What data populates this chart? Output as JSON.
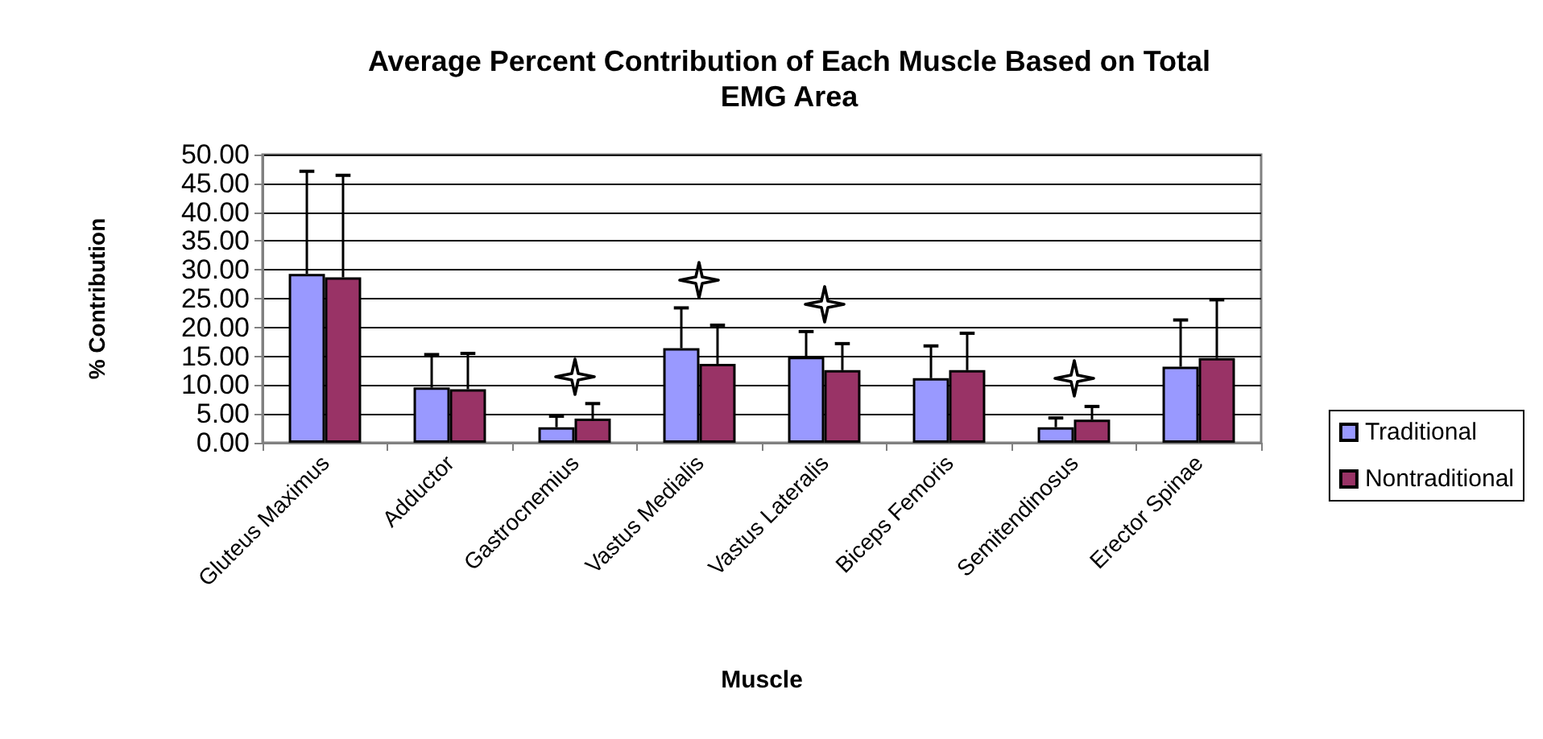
{
  "chart_data": {
    "type": "bar",
    "title": "Average Percent Contribution of Each Muscle Based on Total\nEMG Area",
    "xlabel": "Muscle",
    "ylabel": "% Contribution",
    "categories": [
      "Gluteus Maximus",
      "Adductor",
      "Gastrocnemius",
      "Vastus Medialis",
      "Vastus Lateralis",
      "Biceps Femoris",
      "Semitendinosus",
      "Erector Spinae"
    ],
    "series": [
      {
        "name": "Traditional",
        "color": "#9999ff",
        "values": [
          29.3,
          9.6,
          2.7,
          16.4,
          14.9,
          11.2,
          2.7,
          13.2
        ],
        "errors": [
          [
            29.3,
            47.1
          ],
          [
            9.6,
            15.3
          ],
          [
            2.7,
            4.6
          ],
          [
            16.4,
            23.4
          ],
          [
            14.9,
            19.3
          ],
          [
            11.2,
            16.8
          ],
          [
            2.7,
            4.3
          ],
          [
            13.2,
            21.3
          ]
        ]
      },
      {
        "name": "Nontraditional",
        "color": "#993366",
        "values": [
          28.7,
          9.3,
          4.2,
          13.7,
          12.6,
          12.6,
          4.0,
          14.7
        ],
        "errors": [
          [
            28.7,
            46.4
          ],
          [
            9.3,
            15.5
          ],
          [
            4.2,
            6.8
          ],
          [
            13.7,
            20.4
          ],
          [
            12.6,
            17.2
          ],
          [
            12.6,
            19.0
          ],
          [
            4.0,
            6.3
          ],
          [
            14.7,
            24.8
          ]
        ]
      }
    ],
    "ylim": [
      0,
      50
    ],
    "yticks": [
      {
        "value": 0,
        "label": "0.00"
      },
      {
        "value": 5,
        "label": "5.00"
      },
      {
        "value": 10,
        "label": "10.00"
      },
      {
        "value": 15,
        "label": "15.00"
      },
      {
        "value": 20,
        "label": "20.00"
      },
      {
        "value": 25,
        "label": "25.00"
      },
      {
        "value": 30,
        "label": "30.00"
      },
      {
        "value": 35,
        "label": "35.00"
      },
      {
        "value": 40,
        "label": "40.00"
      },
      {
        "value": 45,
        "label": "45.00"
      },
      {
        "value": 50,
        "label": "50.00"
      }
    ],
    "grid": "y",
    "legend": "right"
  }
}
